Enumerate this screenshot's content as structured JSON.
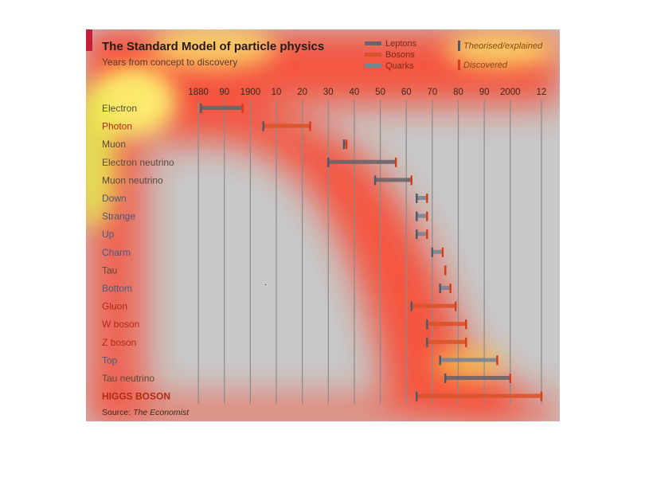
{
  "chart_data": {
    "type": "bar",
    "title": "The Standard Model of particle physics",
    "subtitle": "Years from concept to discovery",
    "x_tick_labels": [
      "1880",
      "90",
      "1900",
      "10",
      "20",
      "30",
      "40",
      "50",
      "60",
      "70",
      "80",
      "90",
      "2000",
      "12"
    ],
    "x_ticks": [
      1880,
      1890,
      1900,
      1910,
      1920,
      1930,
      1940,
      1950,
      1960,
      1970,
      1980,
      1990,
      2000,
      2012
    ],
    "xlim": [
      1872,
      2016
    ],
    "grid": true,
    "legend": {
      "position": "top-right",
      "types": [
        {
          "name": "Leptons",
          "color": "#6b6468"
        },
        {
          "name": "Bosons",
          "color": "#d9532a"
        },
        {
          "name": "Quarks",
          "color": "#7a8494"
        }
      ],
      "markers": [
        {
          "name": "Theorised/explained",
          "color": "#4a5a6a"
        },
        {
          "name": "Discovered",
          "color": "#d93a18"
        }
      ]
    },
    "series": [
      {
        "name": "Electron",
        "type": "Leptons",
        "theorised": 1881,
        "discovered": 1897
      },
      {
        "name": "Photon",
        "type": "Bosons",
        "theorised": 1905,
        "discovered": 1923
      },
      {
        "name": "Muon",
        "type": "Leptons",
        "theorised": 1936,
        "discovered": 1937
      },
      {
        "name": "Electron neutrino",
        "type": "Leptons",
        "theorised": 1930,
        "discovered": 1956
      },
      {
        "name": "Muon neutrino",
        "type": "Leptons",
        "theorised": 1948,
        "discovered": 1962
      },
      {
        "name": "Down",
        "type": "Quarks",
        "theorised": 1964,
        "discovered": 1968
      },
      {
        "name": "Strange",
        "type": "Quarks",
        "theorised": 1964,
        "discovered": 1968
      },
      {
        "name": "Up",
        "type": "Quarks",
        "theorised": 1964,
        "discovered": 1968
      },
      {
        "name": "Charm",
        "type": "Quarks",
        "theorised": 1970,
        "discovered": 1974
      },
      {
        "name": "Tau",
        "type": "Leptons",
        "theorised": 1975,
        "discovered": 1975
      },
      {
        "name": "Bottom",
        "type": "Quarks",
        "theorised": 1973,
        "discovered": 1977
      },
      {
        "name": "Gluon",
        "type": "Bosons",
        "theorised": 1962,
        "discovered": 1979
      },
      {
        "name": "W boson",
        "type": "Bosons",
        "theorised": 1968,
        "discovered": 1983
      },
      {
        "name": "Z boson",
        "type": "Bosons",
        "theorised": 1968,
        "discovered": 1983
      },
      {
        "name": "Top",
        "type": "Quarks",
        "theorised": 1973,
        "discovered": 1995
      },
      {
        "name": "Tau neutrino",
        "type": "Leptons",
        "theorised": 1975,
        "discovered": 2000
      },
      {
        "name": "HIGGS BOSON",
        "type": "Bosons",
        "theorised": 1964,
        "discovered": 2012
      }
    ],
    "source_prefix": "Source: ",
    "source_name": "The Economist"
  },
  "colors": {
    "accent": "#c41e3a",
    "background": "#c8c8c8",
    "heat_hot": "#fff37a",
    "heat_warm": "#ff2a1a"
  }
}
